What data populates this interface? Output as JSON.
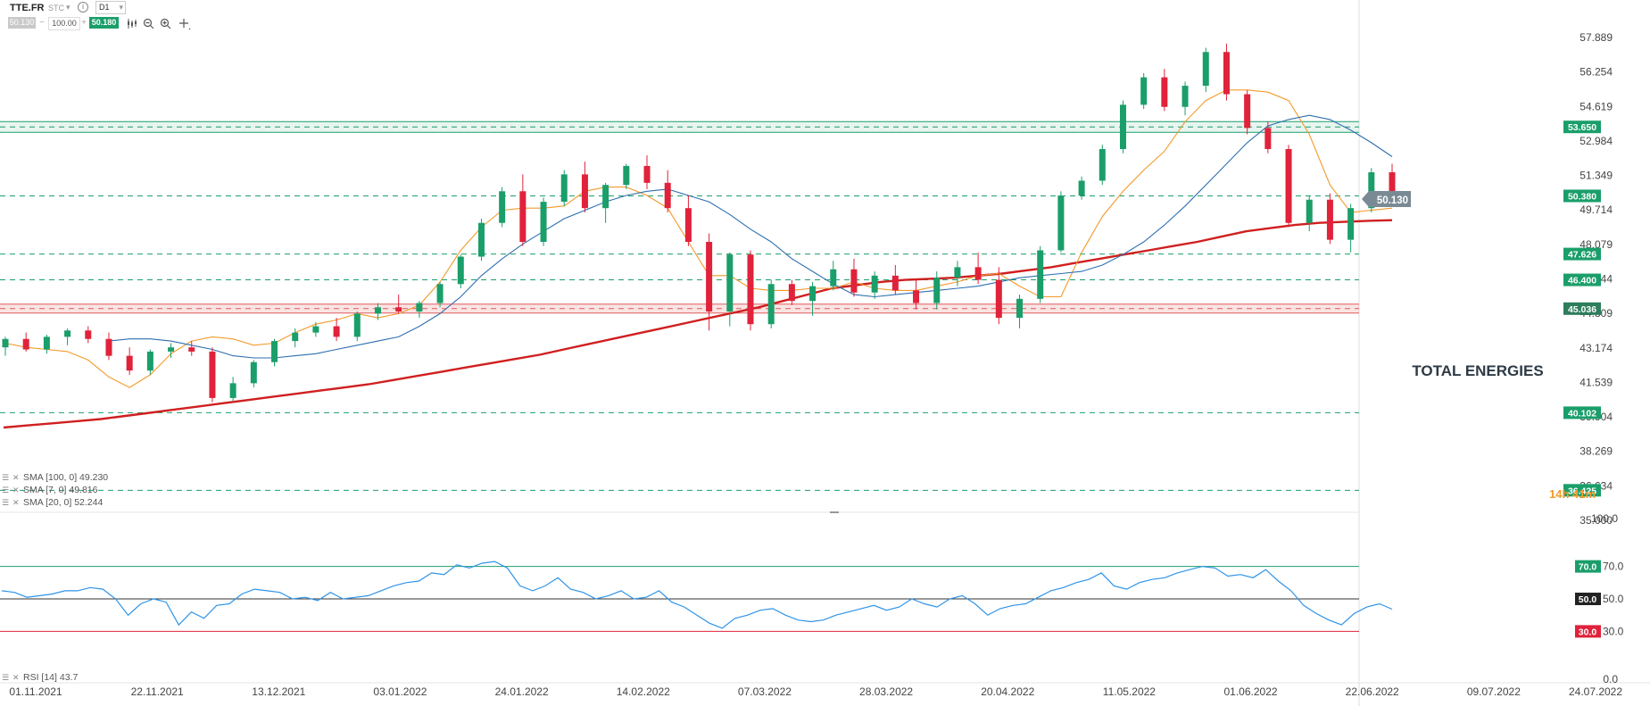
{
  "toolbar": {
    "symbol": "TTE.FR",
    "market": "STC",
    "interval": "D1",
    "bid": "50.130",
    "volume": "100.00",
    "ask": "50.180"
  },
  "watermark": "TOTAL ENERGIES",
  "countdown": "14h 41m",
  "colors": {
    "bull": "#1a9e6a",
    "bear": "#e0223a",
    "sma100": "#d01f1f",
    "sma7": "#f39a2b",
    "sma20": "#2f6fb0",
    "rsi": "#2f94e8"
  },
  "legend": [
    {
      "label": "SMA [100, 0] 49.230"
    },
    {
      "label": "SMA [7, 0] 49.816"
    },
    {
      "label": "SMA [20, 0] 52.244"
    }
  ],
  "rsi_legend": "RSI [14] 43.7",
  "chart_data": [
    {
      "type": "candlestick",
      "symbol": "TTE.FR",
      "x_tick_labels": [
        "01.11.2021",
        "22.11.2021",
        "13.12.2021",
        "03.01.2022",
        "24.01.2022",
        "14.02.2022",
        "07.03.2022",
        "28.03.2022",
        "20.04.2022",
        "11.05.2022",
        "01.06.2022",
        "22.06.2022",
        "09.07.2022",
        "24.07.2022"
      ],
      "y_tick_labels": [
        "57.889",
        "56.254",
        "54.619",
        "52.984",
        "51.349",
        "49.714",
        "48.079",
        "46.444",
        "44.809",
        "43.174",
        "41.539",
        "39.904",
        "38.269",
        "36.634",
        "35.000"
      ],
      "ylim": [
        35.0,
        58.3
      ],
      "last_price": "50.130",
      "levels": [
        {
          "label": "53.650",
          "value": 53.65,
          "style": "band",
          "color": "#1a9e6a"
        },
        {
          "label": "50.380",
          "value": 50.38,
          "style": "dashed",
          "color": "#1a9e6a"
        },
        {
          "label": "47.626",
          "value": 47.626,
          "style": "dashed",
          "color": "#1a9e6a"
        },
        {
          "label": "46.400",
          "value": 46.4,
          "style": "dashed",
          "color": "#1a9e6a"
        },
        {
          "label": "45.036",
          "value": 45.036,
          "style": "band",
          "color": "#e05a5a"
        },
        {
          "label": "40.102",
          "value": 40.102,
          "style": "dashed",
          "color": "#1a9e6a"
        },
        {
          "label": "36.425",
          "value": 36.425,
          "style": "dashed",
          "color": "#1a9e6a"
        }
      ],
      "series": [
        {
          "name": "SMA [100, 0]",
          "values": [
            39.4,
            39.5,
            39.6,
            39.7,
            39.8,
            39.95,
            40.1,
            40.25,
            40.4,
            40.55,
            40.7,
            40.85,
            41.0,
            41.15,
            41.3,
            41.45,
            41.65,
            41.85,
            42.05,
            42.25,
            42.45,
            42.65,
            42.85,
            43.1,
            43.35,
            43.6,
            43.85,
            44.1,
            44.35,
            44.6,
            44.85,
            45.1,
            45.4,
            45.7,
            46.0,
            46.15,
            46.3,
            46.4,
            46.45,
            46.5,
            46.6,
            46.7,
            46.85,
            47.0,
            47.2,
            47.4,
            47.6,
            47.8,
            48.0,
            48.2,
            48.45,
            48.7,
            48.85,
            49.0,
            49.1,
            49.15,
            49.2,
            49.23
          ]
        },
        {
          "name": "SMA [7, 0]",
          "values": [
            43.4,
            43.2,
            43.1,
            43.0,
            42.6,
            41.8,
            41.3,
            41.9,
            42.9,
            43.5,
            43.7,
            43.6,
            43.3,
            43.4,
            43.9,
            44.3,
            44.5,
            44.8,
            44.6,
            44.8,
            45.2,
            46.3,
            47.8,
            48.9,
            49.7,
            49.8,
            49.8,
            49.9,
            50.6,
            50.8,
            50.8,
            50.4,
            49.8,
            48.2,
            46.6,
            46.6,
            46.0,
            45.9,
            45.9,
            46.0,
            46.0,
            46.3,
            46.0,
            45.9,
            45.9,
            46.1,
            46.3,
            46.6,
            46.7,
            46.1,
            45.6,
            45.6,
            47.7,
            49.4,
            50.6,
            51.6,
            52.5,
            53.9,
            54.9,
            55.4,
            55.4,
            55.3,
            54.9,
            53.3,
            50.9,
            49.6,
            49.7,
            49.8
          ]
        },
        {
          "name": "SMA [20, 0]",
          "values": [
            43.5,
            43.6,
            43.6,
            43.5,
            43.3,
            43.1,
            42.8,
            42.7,
            42.7,
            42.8,
            42.9,
            43.1,
            43.3,
            43.5,
            43.7,
            44.2,
            44.8,
            45.6,
            46.6,
            47.4,
            48.1,
            48.7,
            49.3,
            49.7,
            50.1,
            50.4,
            50.6,
            50.7,
            50.4,
            50.1,
            49.5,
            48.8,
            48.2,
            47.4,
            46.8,
            46.2,
            45.7,
            45.6,
            45.7,
            45.8,
            45.9,
            46.0,
            46.1,
            46.3,
            46.5,
            46.6,
            46.7,
            46.8,
            47.1,
            47.6,
            48.2,
            49.0,
            49.9,
            50.9,
            51.9,
            52.9,
            53.7,
            54.0,
            54.2,
            54.0,
            53.5,
            52.9,
            52.24
          ]
        }
      ],
      "candles_ohlc": [
        [
          43.2,
          43.7,
          42.8,
          43.6
        ],
        [
          43.6,
          43.9,
          43.0,
          43.1
        ],
        [
          43.1,
          43.8,
          42.9,
          43.7
        ],
        [
          43.7,
          44.1,
          43.3,
          44.0
        ],
        [
          44.0,
          44.2,
          43.4,
          43.6
        ],
        [
          43.6,
          43.9,
          42.6,
          42.8
        ],
        [
          42.8,
          43.2,
          41.9,
          42.1
        ],
        [
          42.1,
          43.1,
          41.9,
          43.0
        ],
        [
          43.0,
          43.4,
          42.7,
          43.2
        ],
        [
          43.2,
          43.5,
          42.8,
          43.0
        ],
        [
          43.0,
          43.2,
          40.6,
          40.8
        ],
        [
          40.8,
          41.8,
          40.6,
          41.5
        ],
        [
          41.5,
          42.6,
          41.3,
          42.5
        ],
        [
          42.5,
          43.6,
          42.3,
          43.5
        ],
        [
          43.5,
          44.1,
          43.2,
          43.9
        ],
        [
          43.9,
          44.4,
          43.7,
          44.2
        ],
        [
          44.2,
          44.6,
          43.5,
          43.7
        ],
        [
          43.7,
          44.9,
          43.5,
          44.8
        ],
        [
          44.8,
          45.3,
          44.5,
          45.1
        ],
        [
          45.1,
          45.7,
          44.8,
          44.9
        ],
        [
          44.9,
          45.4,
          44.6,
          45.3
        ],
        [
          45.3,
          46.3,
          45.1,
          46.2
        ],
        [
          46.2,
          47.6,
          46.0,
          47.5
        ],
        [
          47.5,
          49.3,
          47.3,
          49.1
        ],
        [
          49.1,
          50.8,
          48.9,
          50.6
        ],
        [
          50.6,
          51.4,
          48.0,
          48.2
        ],
        [
          48.2,
          50.3,
          48.0,
          50.1
        ],
        [
          50.1,
          51.6,
          49.9,
          51.4
        ],
        [
          51.4,
          52.0,
          49.6,
          49.8
        ],
        [
          49.8,
          51.0,
          49.1,
          50.9
        ],
        [
          50.9,
          51.9,
          50.7,
          51.8
        ],
        [
          51.8,
          52.3,
          50.7,
          51.0
        ],
        [
          51.0,
          51.6,
          49.6,
          49.8
        ],
        [
          49.8,
          50.4,
          48.0,
          48.2
        ],
        [
          48.2,
          48.6,
          44.0,
          44.9
        ],
        [
          44.9,
          47.7,
          44.2,
          47.6
        ],
        [
          47.6,
          47.8,
          44.0,
          44.3
        ],
        [
          44.3,
          46.4,
          44.1,
          46.2
        ],
        [
          46.2,
          46.4,
          45.2,
          45.4
        ],
        [
          45.4,
          46.3,
          44.7,
          46.1
        ],
        [
          46.1,
          47.3,
          45.9,
          46.9
        ],
        [
          46.9,
          47.4,
          45.6,
          45.8
        ],
        [
          45.8,
          46.8,
          45.5,
          46.6
        ],
        [
          46.6,
          47.1,
          45.7,
          45.9
        ],
        [
          45.9,
          46.4,
          45.0,
          45.3
        ],
        [
          45.3,
          46.8,
          45.0,
          46.5
        ],
        [
          46.5,
          47.3,
          46.1,
          47.0
        ],
        [
          47.0,
          47.7,
          46.2,
          46.4
        ],
        [
          46.4,
          47.0,
          44.3,
          44.6
        ],
        [
          44.6,
          45.7,
          44.1,
          45.5
        ],
        [
          45.5,
          48.0,
          45.3,
          47.8
        ],
        [
          47.8,
          50.6,
          47.7,
          50.4
        ],
        [
          50.4,
          51.3,
          50.2,
          51.1
        ],
        [
          51.1,
          52.8,
          50.9,
          52.6
        ],
        [
          52.6,
          54.9,
          52.4,
          54.7
        ],
        [
          54.7,
          56.2,
          54.5,
          56.0
        ],
        [
          56.0,
          56.4,
          54.4,
          54.6
        ],
        [
          54.6,
          55.8,
          54.2,
          55.6
        ],
        [
          55.6,
          57.4,
          55.3,
          57.2
        ],
        [
          57.2,
          57.6,
          54.9,
          55.2
        ],
        [
          55.2,
          55.4,
          53.3,
          53.6
        ],
        [
          53.6,
          53.9,
          52.4,
          52.6
        ],
        [
          52.6,
          52.8,
          48.9,
          49.1
        ],
        [
          49.1,
          50.4,
          48.7,
          50.2
        ],
        [
          50.2,
          50.5,
          48.1,
          48.3
        ],
        [
          48.3,
          50.0,
          47.7,
          49.8
        ],
        [
          49.8,
          51.7,
          49.6,
          51.5
        ],
        [
          51.5,
          51.9,
          49.9,
          50.13
        ]
      ]
    },
    {
      "type": "line",
      "name": "RSI [14]",
      "ylim": [
        0.0,
        100.0
      ],
      "y_tick_labels": [
        "100.0",
        "70.0",
        "50.0",
        "30.0",
        "0.0"
      ],
      "levels": [
        {
          "label": "70.0",
          "value": 70.0,
          "color": "#1a9e6a"
        },
        {
          "label": "50.0",
          "value": 50.0,
          "color": "#333333"
        },
        {
          "label": "30.0",
          "value": 30.0,
          "color": "#e0223a"
        }
      ],
      "series": [
        {
          "name": "RSI [14]",
          "values": [
            55,
            54,
            51,
            52,
            53,
            55,
            55,
            57,
            56,
            50,
            40,
            47,
            50,
            48,
            34,
            42,
            38,
            46,
            47,
            53,
            56,
            55,
            54,
            50,
            51,
            49,
            54,
            50,
            51,
            52,
            55,
            58,
            60,
            61,
            66,
            65,
            71,
            69,
            72,
            73,
            69,
            58,
            55,
            58,
            63,
            56,
            54,
            50,
            52,
            55,
            50,
            51,
            55,
            48,
            45,
            40,
            35,
            32,
            38,
            40,
            43,
            44,
            40,
            37,
            36,
            37,
            40,
            42,
            44,
            46,
            43,
            45,
            50,
            47,
            45,
            50,
            52,
            47,
            40,
            44,
            46,
            47,
            51,
            55,
            57,
            60,
            62,
            66,
            58,
            56,
            60,
            62,
            63,
            66,
            68,
            70,
            69,
            64,
            65,
            63,
            68,
            61,
            55,
            46,
            41,
            37,
            34,
            41,
            45,
            47,
            43.7
          ]
        }
      ]
    }
  ]
}
